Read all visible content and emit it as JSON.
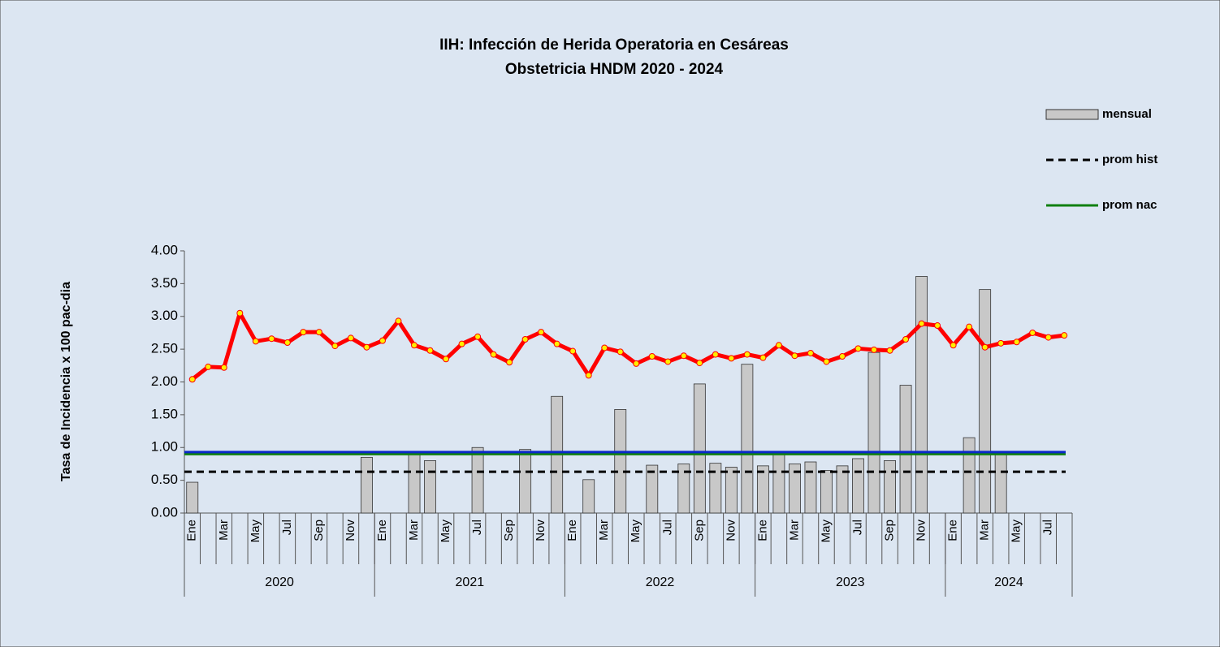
{
  "chart_data": {
    "type": "bar",
    "title": [
      "IIH: Infección de Herida Operatoria en Cesáreas",
      "Obstetricia HNDM 2020 - 2024"
    ],
    "y_label": "Tasa de Incidencia x 100 pac-dia",
    "groups": [
      "2020",
      "2021",
      "2022",
      "2023",
      "2024"
    ],
    "categories": [
      "Ene",
      null,
      "Mar",
      null,
      "May",
      null,
      "Jul",
      null,
      "Sep",
      null,
      "Nov",
      null,
      "Ene",
      null,
      "Mar",
      null,
      "May",
      null,
      "Jul",
      null,
      "Sep",
      null,
      "Nov",
      null,
      "Ene",
      null,
      "Mar",
      null,
      "May",
      null,
      "Jul",
      null,
      "Sep",
      null,
      "Nov",
      null,
      "Ene",
      null,
      "Mar",
      null,
      "May",
      null,
      "Jul",
      null,
      "Sep",
      null,
      "Nov",
      null,
      "Ene",
      null,
      "Mar",
      null,
      "May",
      null,
      "Jul",
      null
    ],
    "ylim": [
      0,
      4
    ],
    "yticks": [
      {
        "value": 0,
        "label": "0.00"
      },
      {
        "value": 0.5,
        "label": "0.50"
      },
      {
        "value": 1,
        "label": "1.00"
      },
      {
        "value": 1.5,
        "label": "1.50"
      },
      {
        "value": 2,
        "label": "2.00"
      },
      {
        "value": 2.5,
        "label": "2.50"
      },
      {
        "value": 3,
        "label": "3.00"
      },
      {
        "value": 3.5,
        "label": "3.50"
      },
      {
        "value": 4,
        "label": "4.00"
      }
    ],
    "legend": "right",
    "series": [
      {
        "name": "mensual",
        "type": "bar",
        "color": "#c8c8c8",
        "values": [
          0.47,
          0,
          0,
          0,
          0,
          0,
          0,
          0,
          0,
          0,
          0,
          0.85,
          0,
          0,
          0.9,
          0.8,
          0,
          0,
          1.0,
          0,
          0,
          0.97,
          0,
          1.78,
          0,
          0.51,
          0,
          1.58,
          0,
          0.73,
          0,
          0.75,
          1.97,
          0.76,
          0.7,
          2.27,
          0.72,
          0.9,
          0.75,
          0.78,
          0.65,
          0.72,
          0.83,
          2.45,
          0.8,
          1.95,
          3.61,
          0,
          0,
          1.15,
          3.41,
          0.9,
          0,
          0,
          0,
          0
        ]
      },
      {
        "name": "prom hist",
        "type": "hline",
        "color": "#000000",
        "dashed": true,
        "value": 0.63
      },
      {
        "name": "prom nac",
        "type": "hline",
        "color": "#108010",
        "value": 0.9
      },
      {
        "type": "hline",
        "color": "#0a28c8",
        "value": 0.93
      },
      {
        "type": "line",
        "color": "#ff0000",
        "marker_color": "#ffee00",
        "values": [
          2.04,
          2.23,
          2.22,
          3.05,
          2.62,
          2.66,
          2.6,
          2.76,
          2.76,
          2.55,
          2.67,
          2.53,
          2.63,
          2.93,
          2.56,
          2.48,
          2.35,
          2.58,
          2.69,
          2.42,
          2.3,
          2.65,
          2.76,
          2.58,
          2.47,
          2.1,
          2.52,
          2.46,
          2.28,
          2.39,
          2.31,
          2.4,
          2.29,
          2.42,
          2.36,
          2.42,
          2.37,
          2.56,
          2.4,
          2.44,
          2.31,
          2.39,
          2.51,
          2.49,
          2.48,
          2.65,
          2.89,
          2.86,
          2.56,
          2.84,
          2.53,
          2.59,
          2.61,
          2.75,
          2.68,
          2.71
        ]
      }
    ]
  }
}
